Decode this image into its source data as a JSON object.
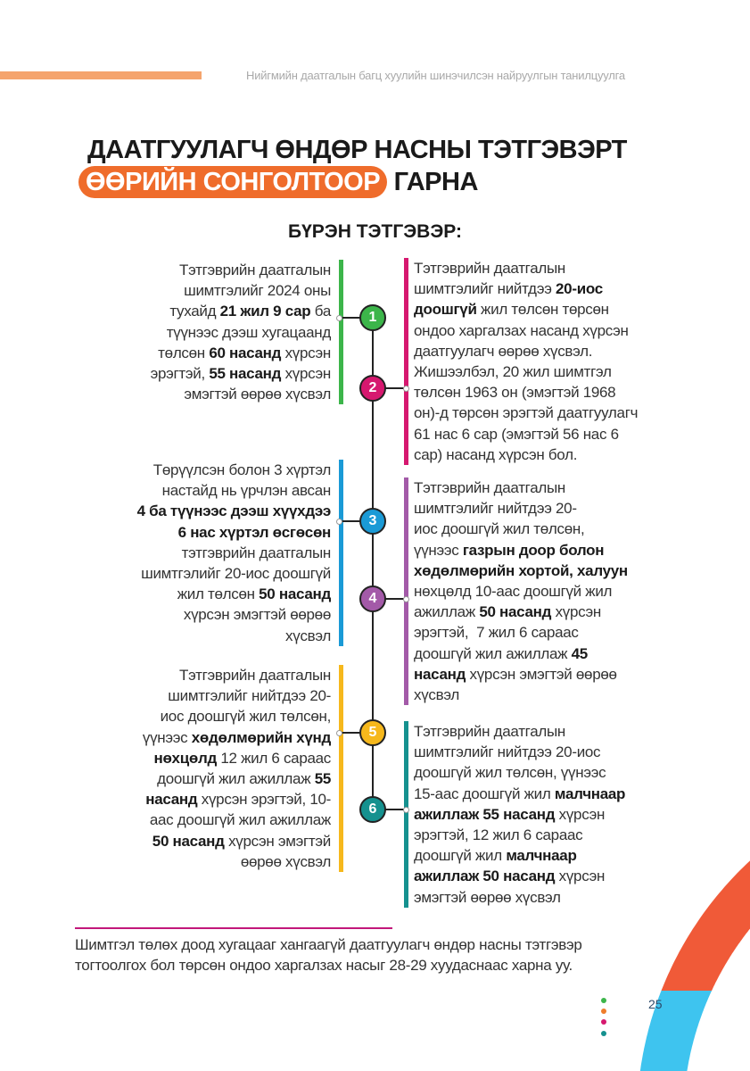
{
  "header": {
    "running_title": "Нийгмийн даатгалын багц хуулийн шинэчилсэн найруулгын танилцуулга"
  },
  "title": {
    "line1": "ДААТГУУЛАГЧ ӨНДӨР НАСНЫ ТЭТГЭВЭРТ",
    "highlight": "ӨӨРИЙН  СОНГОЛТООР",
    "rest": " ГАРНА"
  },
  "subtitle": "БҮРЭН ТЭТГЭВЭР:",
  "colors": {
    "accent": "#ef6c2b",
    "green": "#3cb54a",
    "magenta": "#d6186f",
    "blue": "#1a9ad6",
    "purple": "#a35aa8",
    "yellow": "#f6b81c",
    "teal": "#15918f",
    "arc_orange": "#f05a38",
    "arc_blue": "#3ec4ef"
  },
  "items": [
    {
      "number": "1",
      "color": "#3cb54a",
      "side": "left",
      "lines": [
        [
          {
            "t": "Тэтгэврийн даатгалын"
          }
        ],
        [
          {
            "t": "шимтгэлийг 2024 оны"
          }
        ],
        [
          {
            "t": "тухайд "
          },
          {
            "t": "21 жил 9 сар",
            "b": true
          },
          {
            "t": " ба"
          }
        ],
        [
          {
            "t": "түүнээс дээш хугацаанд"
          }
        ],
        [
          {
            "t": "төлсөн "
          },
          {
            "t": "60 насанд",
            "b": true
          },
          {
            "t": " хүрсэн"
          }
        ],
        [
          {
            "t": "эрэгтэй, "
          },
          {
            "t": "55 насанд",
            "b": true
          },
          {
            "t": " хүрсэн"
          }
        ],
        [
          {
            "t": "эмэгтэй өөрөө хүсвэл"
          }
        ]
      ]
    },
    {
      "number": "2",
      "color": "#d6186f",
      "side": "right",
      "lines": [
        [
          {
            "t": "Тэтгэврийн даатгалын"
          }
        ],
        [
          {
            "t": "шимтгэлийг нийтдээ "
          },
          {
            "t": "20-иос",
            "b": true
          }
        ],
        [
          {
            "t": "доошгүй",
            "b": true
          },
          {
            "t": " жил төлсөн төрсөн"
          }
        ],
        [
          {
            "t": "ондоо харгалзах насанд хүрсэн"
          }
        ],
        [
          {
            "t": "даатгуулагч өөрөө хүсвэл."
          }
        ],
        [
          {
            "t": "Жишээлбэл, 20 жил шимтгэл"
          }
        ],
        [
          {
            "t": "төлсөн 1963 он (эмэгтэй 1968"
          }
        ],
        [
          {
            "t": "он)-д төрсөн эрэгтэй даатгуулагч"
          }
        ],
        [
          {
            "t": "61 нас 6 сар (эмэгтэй 56 нас 6"
          }
        ],
        [
          {
            "t": "сар) насанд хүрсэн бол."
          }
        ]
      ]
    },
    {
      "number": "3",
      "color": "#1a9ad6",
      "side": "left",
      "lines": [
        [
          {
            "t": "Төрүүлсэн болон 3 хүртэл"
          }
        ],
        [
          {
            "t": "настайд нь үрчлэн авсан"
          }
        ],
        [
          {
            "t": "4 ба түүнээс дээш хүүхдээ",
            "b": true
          }
        ],
        [
          {
            "t": "6 нас хүртэл өсгөсөн",
            "b": true
          }
        ],
        [
          {
            "t": "тэтгэврийн даатгалын"
          }
        ],
        [
          {
            "t": "шимтгэлийг 20-иос доошгүй"
          }
        ],
        [
          {
            "t": "жил төлсөн "
          },
          {
            "t": "50 насанд",
            "b": true
          }
        ],
        [
          {
            "t": "хүрсэн эмэгтэй өөрөө"
          }
        ],
        [
          {
            "t": "хүсвэл"
          }
        ]
      ]
    },
    {
      "number": "4",
      "color": "#a35aa8",
      "side": "right",
      "lines": [
        [
          {
            "t": "Тэтгэврийн даатгалын"
          }
        ],
        [
          {
            "t": "шимтгэлийг нийтдээ 20-"
          }
        ],
        [
          {
            "t": "иос доошгүй жил төлсөн,"
          }
        ],
        [
          {
            "t": "үүнээс "
          },
          {
            "t": "газрын доор болон",
            "b": true
          }
        ],
        [
          {
            "t": "хөдөлмөрийн хортой, халуун",
            "b": true
          }
        ],
        [
          {
            "t": "нөхцөлд 10-аас доошгүй жил"
          }
        ],
        [
          {
            "t": "ажиллаж "
          },
          {
            "t": "50 насанд",
            "b": true
          },
          {
            "t": " хүрсэн"
          }
        ],
        [
          {
            "t": "эрэгтэй,  7 жил 6 сараас"
          }
        ],
        [
          {
            "t": "доошгүй жил ажиллаж "
          },
          {
            "t": "45",
            "b": true
          }
        ],
        [
          {
            "t": "насанд",
            "b": true
          },
          {
            "t": " хүрсэн эмэгтэй өөрөө"
          }
        ],
        [
          {
            "t": "хүсвэл"
          }
        ]
      ]
    },
    {
      "number": "5",
      "color": "#f6b81c",
      "side": "left",
      "lines": [
        [
          {
            "t": "Тэтгэврийн даатгалын"
          }
        ],
        [
          {
            "t": "шимтгэлийг нийтдээ 20-"
          }
        ],
        [
          {
            "t": "иос доошгүй жил төлсөн,"
          }
        ],
        [
          {
            "t": "үүнээс "
          },
          {
            "t": "хөдөлмөрийн хүнд",
            "b": true
          }
        ],
        [
          {
            "t": "нөхцөлд",
            "b": true
          },
          {
            "t": " 12 жил 6 сараас"
          }
        ],
        [
          {
            "t": "доошгүй жил ажиллаж "
          },
          {
            "t": "55",
            "b": true
          }
        ],
        [
          {
            "t": "насанд",
            "b": true
          },
          {
            "t": " хүрсэн эрэгтэй, 10-"
          }
        ],
        [
          {
            "t": "аас доошгүй жил ажиллаж"
          }
        ],
        [
          {
            "t": "50 насанд",
            "b": true
          },
          {
            "t": " хүрсэн эмэгтэй"
          }
        ],
        [
          {
            "t": "өөрөө хүсвэл"
          }
        ]
      ]
    },
    {
      "number": "6",
      "color": "#15918f",
      "side": "right",
      "lines": [
        [
          {
            "t": "Тэтгэврийн даатгалын"
          }
        ],
        [
          {
            "t": "шимтгэлийг нийтдээ 20-иос"
          }
        ],
        [
          {
            "t": "доошгүй жил төлсөн, үүнээс"
          }
        ],
        [
          {
            "t": "15-аас доошгүй жил "
          },
          {
            "t": "малчнаар",
            "b": true
          }
        ],
        [
          {
            "t": "ажиллаж 55 насанд",
            "b": true
          },
          {
            "t": " хүрсэн"
          }
        ],
        [
          {
            "t": "эрэгтэй, 12 жил 6 сараас"
          }
        ],
        [
          {
            "t": "доошгүй жил "
          },
          {
            "t": "малчнаар",
            "b": true
          }
        ],
        [
          {
            "t": "ажиллаж 50 насанд",
            "b": true
          },
          {
            "t": " хүрсэн"
          }
        ],
        [
          {
            "t": "эмэгтэй өөрөө хүсвэл"
          }
        ]
      ]
    }
  ],
  "note": {
    "line1": "Шимтгэл төлөх доод хугацааг хангаагүй даатгуулагч өндөр насны тэтгэвэр",
    "line2": "тогтоолгох бол төрсөн ондоо харгалзах насыг 28-29 хуудаснаас харна уу."
  },
  "page_number": "25"
}
